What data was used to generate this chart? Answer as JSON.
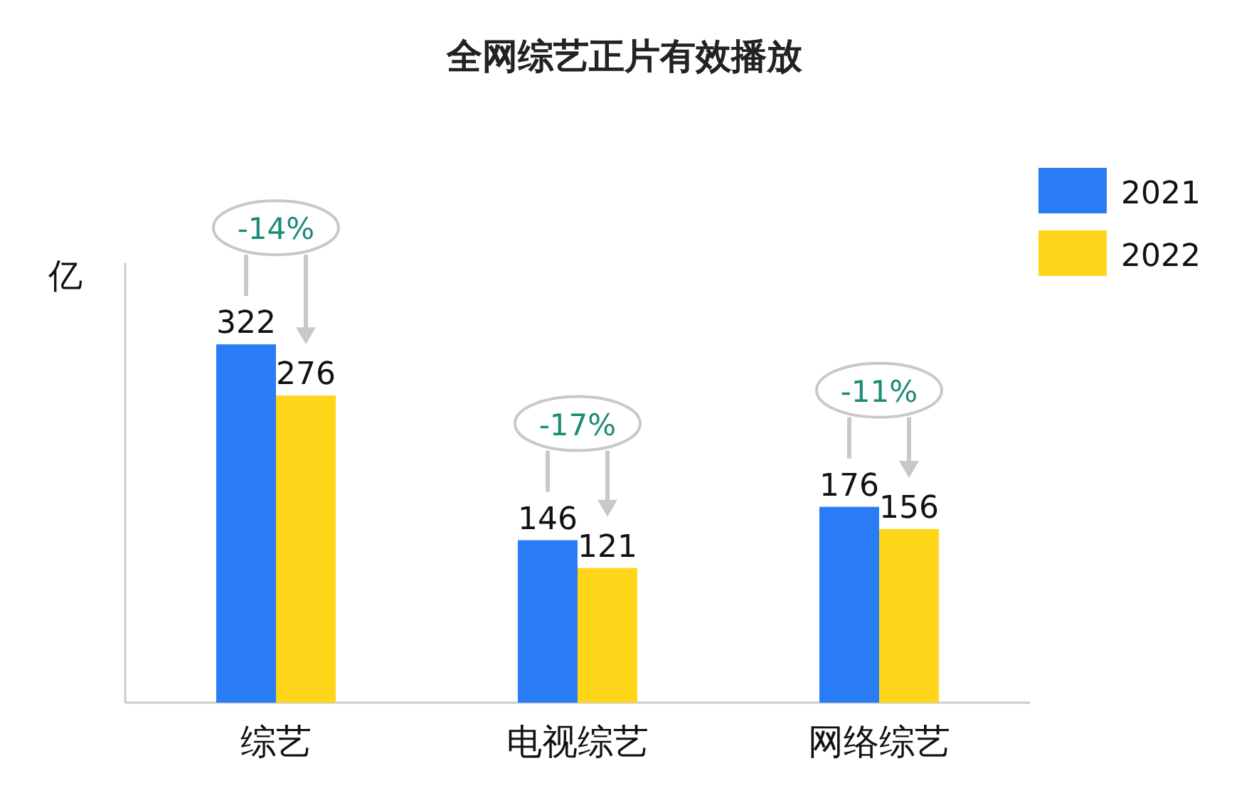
{
  "chart_data": {
    "type": "bar",
    "title": "全网综艺正片有效播放",
    "ylabel": "亿",
    "categories": [
      "综艺",
      "电视综艺",
      "网络综艺"
    ],
    "series": [
      {
        "name": "2021",
        "color": "#2a7cf6",
        "values": [
          322,
          146,
          176
        ]
      },
      {
        "name": "2022",
        "color": "#ffd619",
        "values": [
          276,
          121,
          156
        ]
      }
    ],
    "ylim": [
      0,
      395
    ],
    "tick_labels": "x",
    "data_labels": true,
    "legend": "top right",
    "annotations": [
      "-14%",
      "-17%",
      "-11%"
    ]
  }
}
